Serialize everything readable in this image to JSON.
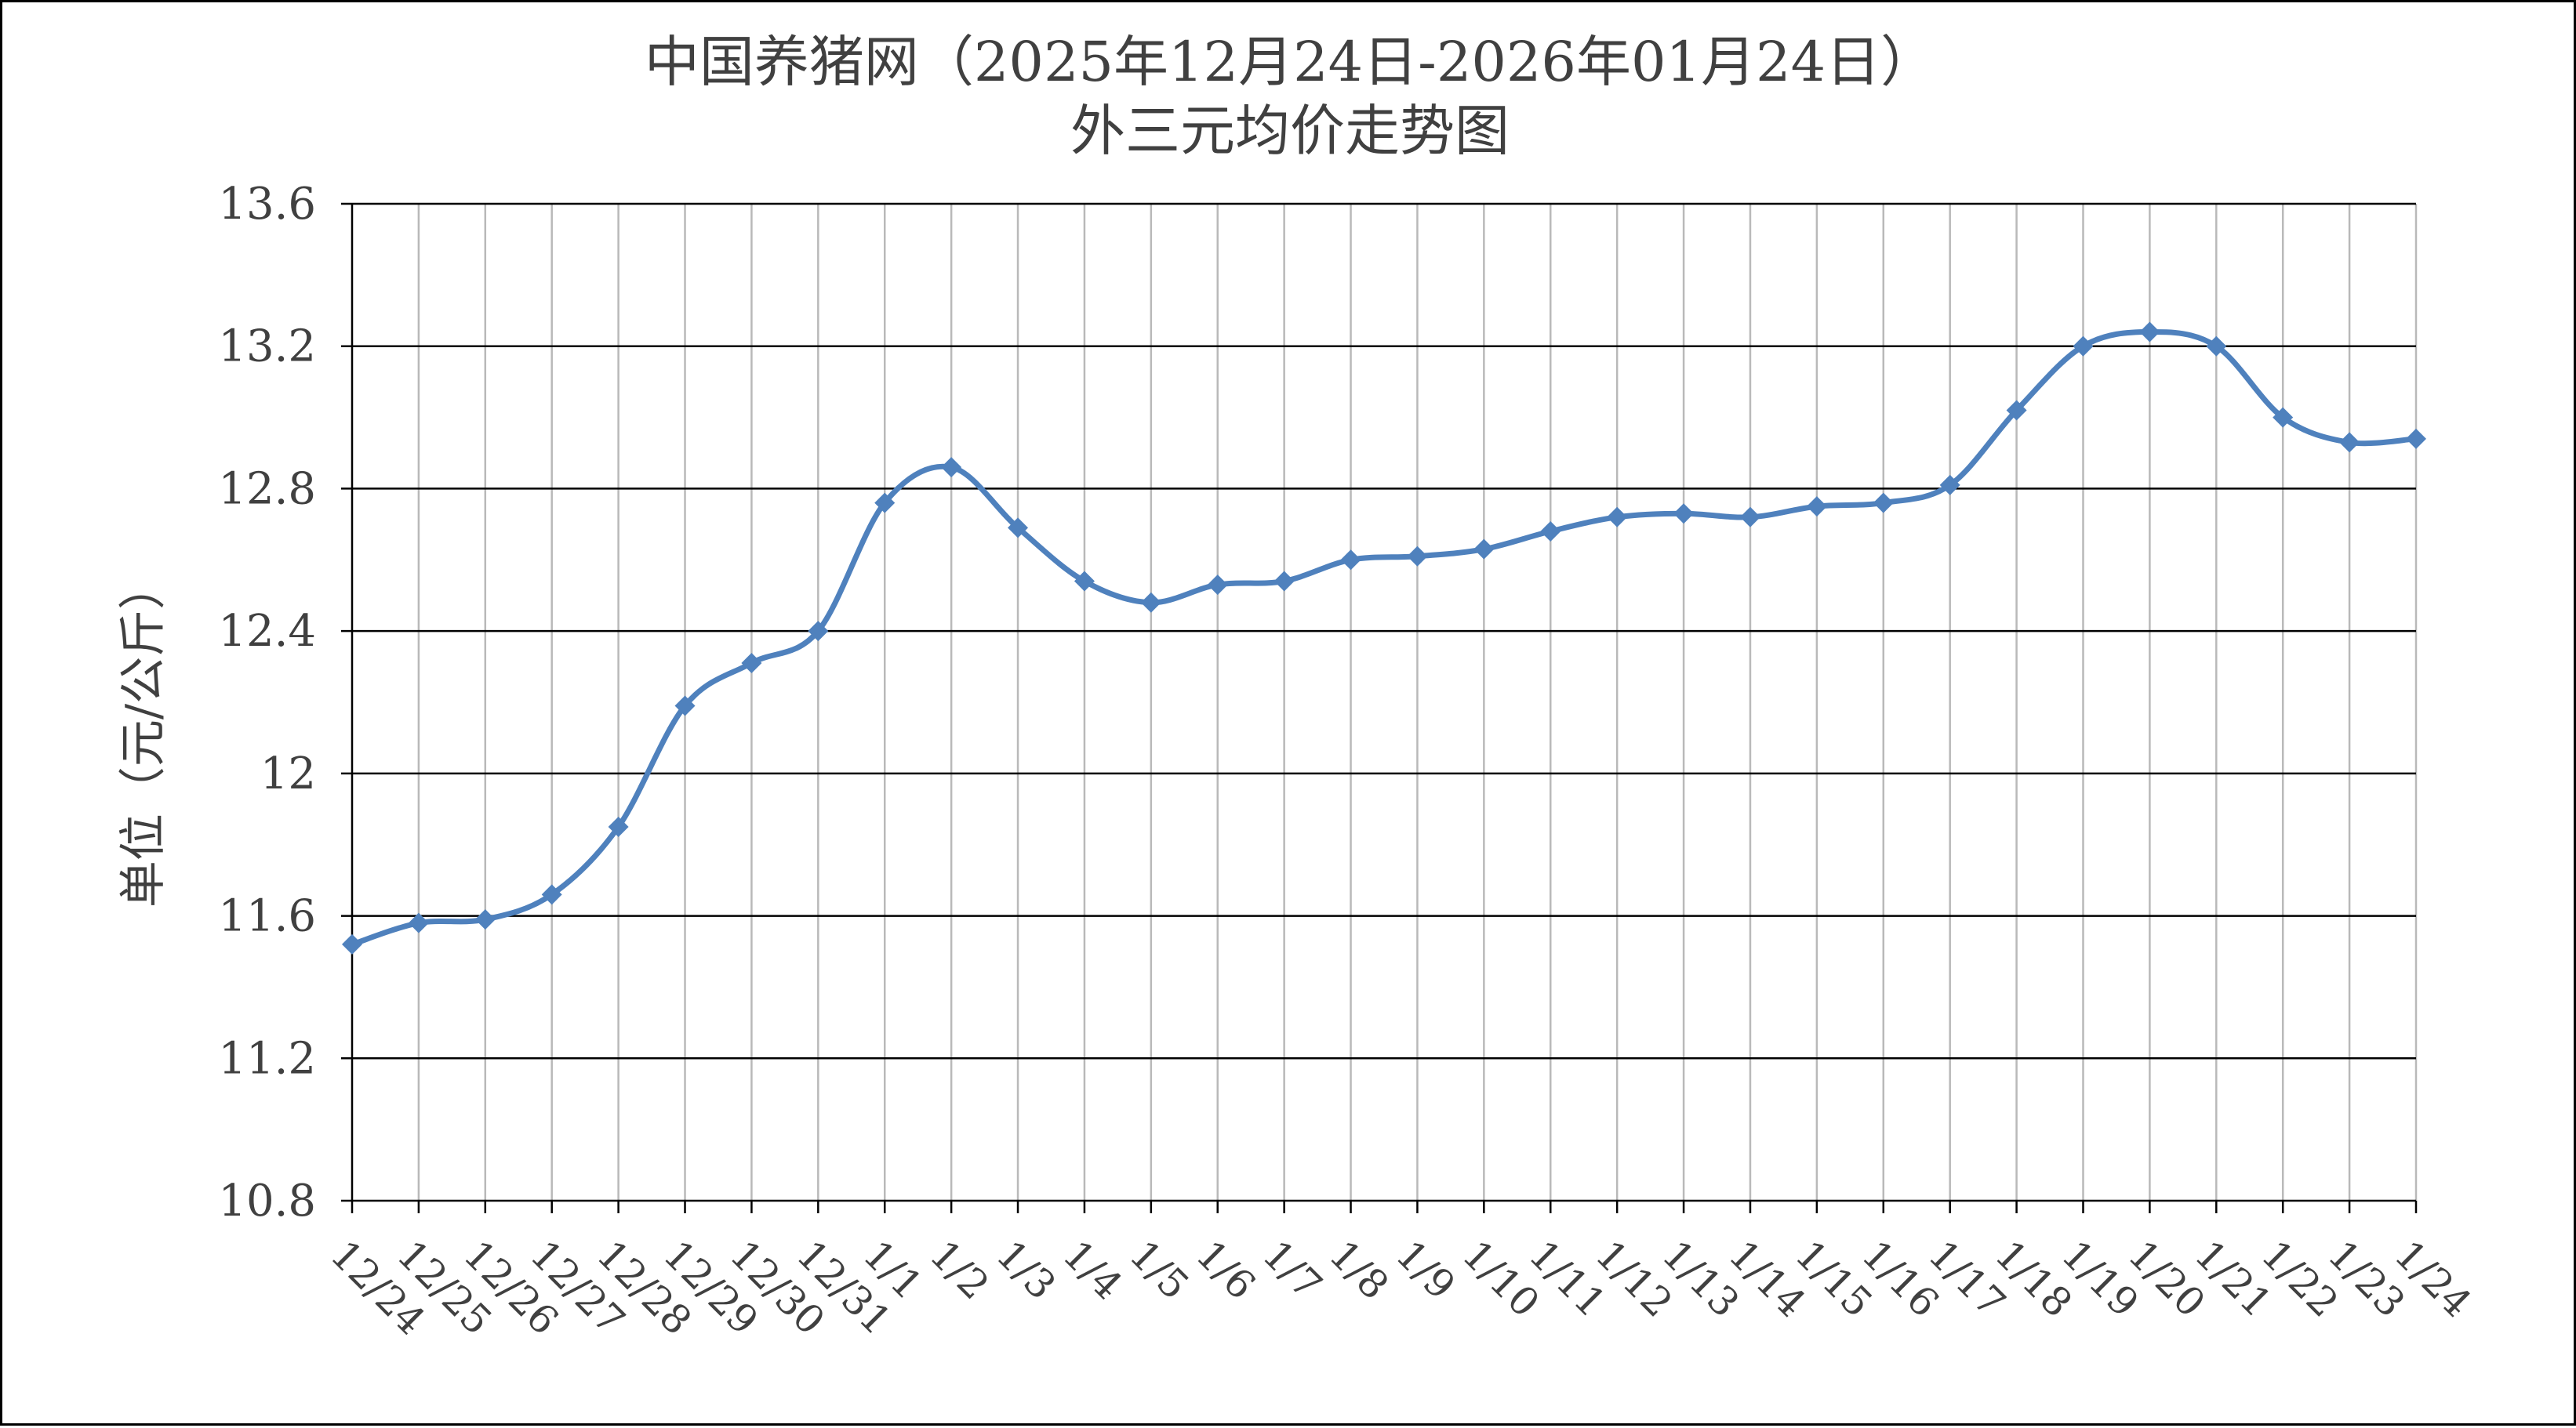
{
  "chart_data": {
    "type": "line",
    "title": "中国养猪网（2025年12月24日-2026年01月24日）",
    "subtitle": "外三元均价走势图",
    "xlabel": "",
    "ylabel": "单位（元/公斤）",
    "ylim": [
      10.8,
      13.6
    ],
    "yticks": [
      "10.8",
      "11.2",
      "11.6",
      "12",
      "12.4",
      "12.8",
      "13.2",
      "13.6"
    ],
    "grid": true,
    "legend": "none",
    "line_color": "#4f81bd",
    "categories": [
      "12/24",
      "12/25",
      "12/26",
      "12/27",
      "12/28",
      "12/29",
      "12/30",
      "12/31",
      "1/1",
      "1/2",
      "1/3",
      "1/4",
      "1/5",
      "1/6",
      "1/7",
      "1/8",
      "1/9",
      "1/10",
      "1/11",
      "1/12",
      "1/13",
      "1/14",
      "1/15",
      "1/16",
      "1/17",
      "1/18",
      "1/19",
      "1/20",
      "1/21",
      "1/22",
      "1/23",
      "1/24"
    ],
    "values": [
      11.52,
      11.58,
      11.59,
      11.66,
      11.85,
      12.19,
      12.31,
      12.4,
      12.76,
      12.86,
      12.69,
      12.54,
      12.48,
      12.53,
      12.54,
      12.6,
      12.61,
      12.63,
      12.68,
      12.72,
      12.73,
      12.72,
      12.75,
      12.76,
      12.81,
      13.02,
      13.2,
      13.24,
      13.2,
      13.0,
      12.93,
      12.94
    ]
  }
}
